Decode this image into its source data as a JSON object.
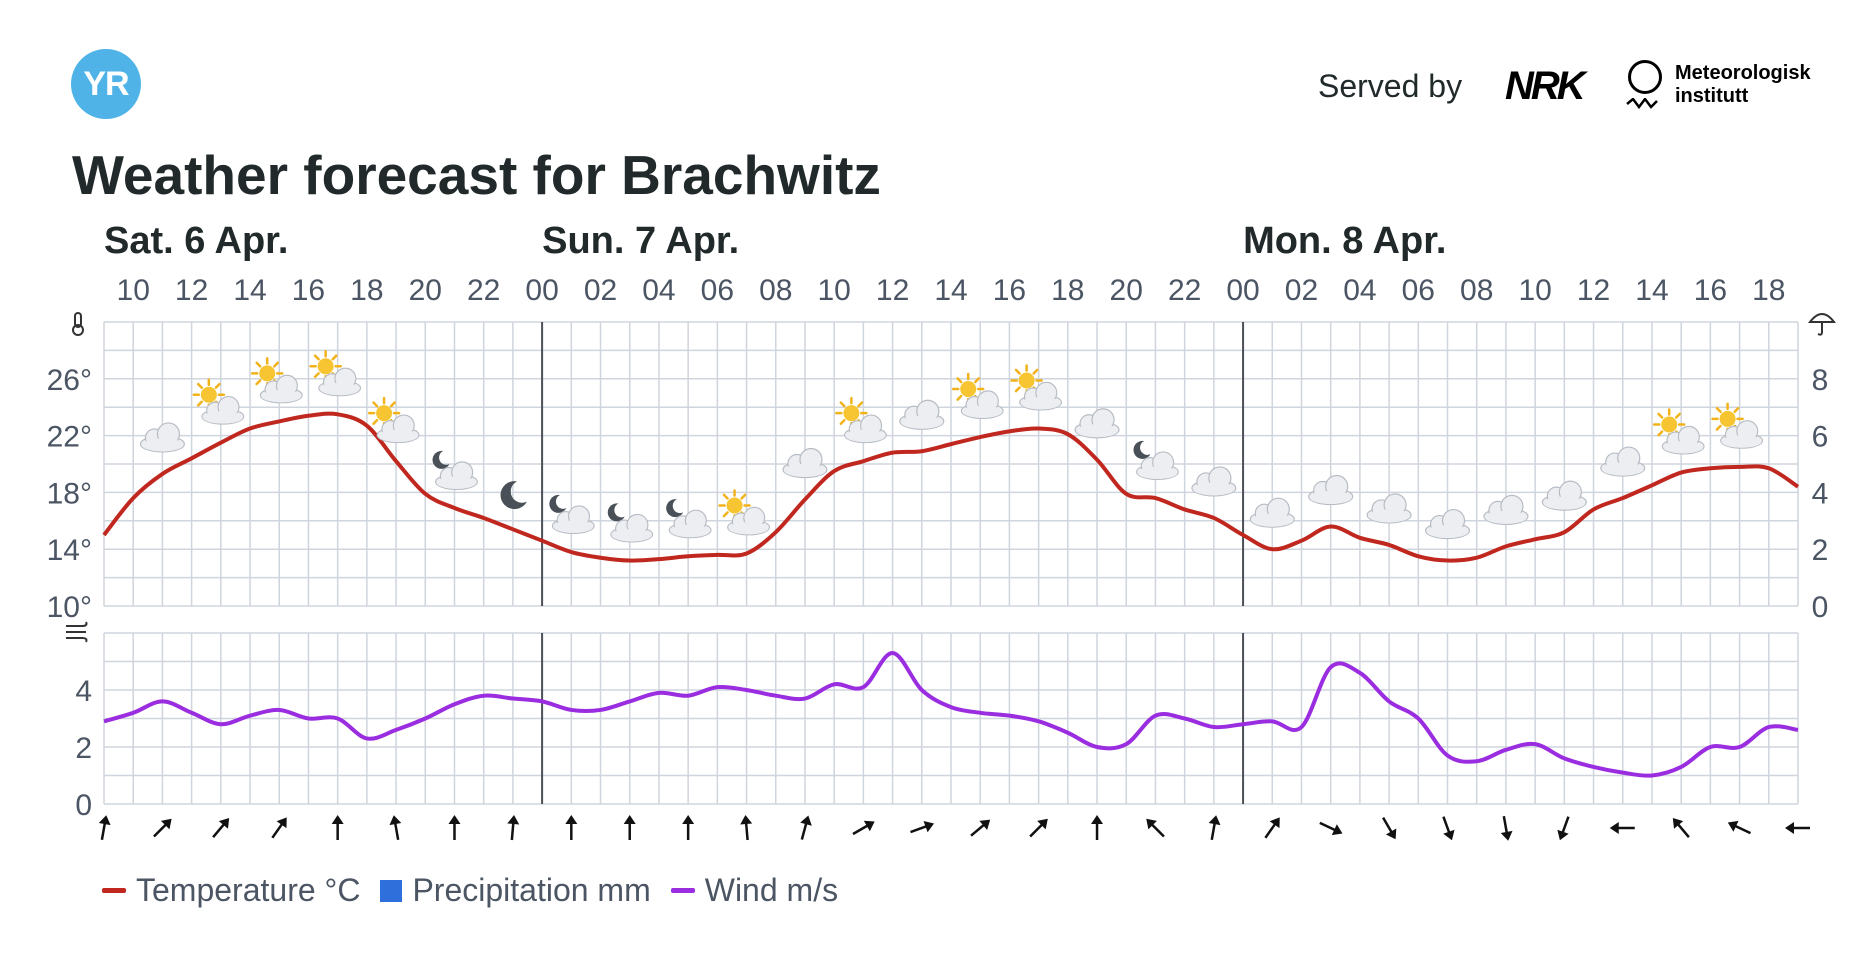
{
  "header": {
    "logo_text": "YR",
    "served_by": "Served by",
    "partner_nrk": "NRK",
    "partner_met_line1": "Meteorologisk",
    "partner_met_line2": "institutt",
    "title": "Weather forecast for Brachwitz"
  },
  "colors": {
    "temperature": "#c0281f",
    "precipitation": "#2f6fdc",
    "wind": "#9b2de0",
    "grid": "#cfd5dd",
    "logo": "#4fb3e8"
  },
  "legend": [
    {
      "label": "Temperature °C",
      "color": "#c0281f",
      "kind": "line"
    },
    {
      "label": "Precipitation mm",
      "color": "#2f6fdc",
      "kind": "box"
    },
    {
      "label": "Wind m/s",
      "color": "#9b2de0",
      "kind": "line"
    }
  ],
  "chart_data": [
    {
      "type": "line",
      "x_unit": "hours since Sat 6 Apr 09:00",
      "x_range": [
        0,
        58
      ],
      "days": [
        {
          "label": "Sat. 6 Apr.",
          "hour": 0
        },
        {
          "label": "Sun. 7 Apr.",
          "hour": 15
        },
        {
          "label": "Mon. 8 Apr.",
          "hour": 39
        }
      ],
      "hour_tick_labels": [
        "10",
        "12",
        "14",
        "16",
        "18",
        "20",
        "22",
        "00",
        "02",
        "04",
        "06",
        "08",
        "10",
        "12",
        "14",
        "16",
        "18",
        "20",
        "22",
        "00",
        "02",
        "04",
        "06",
        "08",
        "10",
        "12",
        "14",
        "16",
        "18"
      ],
      "hour_tick_positions": [
        1,
        3,
        5,
        7,
        9,
        11,
        13,
        15,
        17,
        19,
        21,
        23,
        25,
        27,
        29,
        31,
        33,
        35,
        37,
        39,
        41,
        43,
        45,
        47,
        49,
        51,
        53,
        55,
        57
      ],
      "ylim": [
        10,
        30
      ],
      "left_ticks": [
        "10°",
        "14°",
        "18°",
        "22°",
        "26°"
      ],
      "left_tick_values": [
        10,
        14,
        18,
        22,
        26
      ],
      "right_ticks": [
        "0",
        "2",
        "4",
        "6",
        "8"
      ],
      "right_tick_values": [
        0,
        2,
        4,
        6,
        8
      ],
      "right_ylim": [
        0,
        10
      ],
      "series": [
        {
          "name": "Temperature °C",
          "x": [
            0,
            1,
            2,
            3,
            4,
            5,
            6,
            7,
            8,
            9,
            10,
            11,
            12,
            13,
            14,
            15,
            16,
            17,
            18,
            19,
            20,
            21,
            22,
            23,
            24,
            25,
            26,
            27,
            28,
            29,
            30,
            31,
            32,
            33,
            34,
            35,
            36,
            37,
            38,
            39,
            40,
            41,
            42,
            43,
            44,
            45,
            46,
            47,
            48,
            49,
            50,
            51,
            52,
            53,
            54,
            55,
            56,
            57,
            58
          ],
          "values": [
            15.0,
            17.6,
            19.3,
            20.4,
            21.5,
            22.5,
            23.0,
            23.4,
            23.5,
            22.7,
            20.2,
            17.9,
            16.9,
            16.2,
            15.4,
            14.6,
            13.8,
            13.4,
            13.2,
            13.3,
            13.5,
            13.6,
            13.7,
            15.2,
            17.5,
            19.5,
            20.2,
            20.8,
            20.9,
            21.4,
            21.9,
            22.3,
            22.5,
            22.1,
            20.3,
            17.9,
            17.6,
            16.8,
            16.2,
            15.0,
            14.0,
            14.6,
            15.6,
            14.8,
            14.3,
            13.5,
            13.2,
            13.4,
            14.2,
            14.7,
            15.2,
            16.8,
            17.6,
            18.5,
            19.4,
            19.7,
            19.8,
            19.7,
            18.4
          ]
        }
      ],
      "weather_symbols": [
        {
          "hour": 2,
          "icon": "cloudy-icon"
        },
        {
          "hour": 4,
          "icon": "partly-sunny-icon"
        },
        {
          "hour": 6,
          "icon": "partly-sunny-icon"
        },
        {
          "hour": 8,
          "icon": "partly-sunny-icon"
        },
        {
          "hour": 10,
          "icon": "partly-sunny-icon"
        },
        {
          "hour": 12,
          "icon": "partly-moon-icon"
        },
        {
          "hour": 14,
          "icon": "moon-icon"
        },
        {
          "hour": 16,
          "icon": "partly-moon-icon"
        },
        {
          "hour": 18,
          "icon": "partly-moon-icon"
        },
        {
          "hour": 20,
          "icon": "partly-moon-icon"
        },
        {
          "hour": 22,
          "icon": "partly-sunny-icon"
        },
        {
          "hour": 24,
          "icon": "cloudy-icon"
        },
        {
          "hour": 26,
          "icon": "partly-sunny-icon"
        },
        {
          "hour": 28,
          "icon": "cloudy-icon"
        },
        {
          "hour": 30,
          "icon": "partly-sunny-icon"
        },
        {
          "hour": 32,
          "icon": "partly-sunny-icon"
        },
        {
          "hour": 34,
          "icon": "cloudy-icon"
        },
        {
          "hour": 36,
          "icon": "partly-moon-icon"
        },
        {
          "hour": 38,
          "icon": "cloudy-icon"
        },
        {
          "hour": 40,
          "icon": "cloudy-icon"
        },
        {
          "hour": 42,
          "icon": "cloudy-icon"
        },
        {
          "hour": 44,
          "icon": "cloudy-icon"
        },
        {
          "hour": 46,
          "icon": "cloudy-icon"
        },
        {
          "hour": 48,
          "icon": "cloudy-icon"
        },
        {
          "hour": 50,
          "icon": "cloudy-icon"
        },
        {
          "hour": 52,
          "icon": "cloudy-icon"
        },
        {
          "hour": 54,
          "icon": "partly-sunny-icon"
        },
        {
          "hour": 56,
          "icon": "partly-sunny-icon"
        }
      ],
      "grid": true
    },
    {
      "type": "line",
      "x_unit": "hours since Sat 6 Apr 09:00",
      "x_range": [
        0,
        58
      ],
      "ylim": [
        0,
        6
      ],
      "left_ticks": [
        "0",
        "2",
        "4"
      ],
      "left_tick_values": [
        0,
        2,
        4
      ],
      "series": [
        {
          "name": "Wind m/s",
          "x": [
            0,
            1,
            2,
            3,
            4,
            5,
            6,
            7,
            8,
            9,
            10,
            11,
            12,
            13,
            14,
            15,
            16,
            17,
            18,
            19,
            20,
            21,
            22,
            23,
            24,
            25,
            26,
            27,
            28,
            29,
            30,
            31,
            32,
            33,
            34,
            35,
            36,
            37,
            38,
            39,
            40,
            41,
            42,
            43,
            44,
            45,
            46,
            47,
            48,
            49,
            50,
            51,
            52,
            53,
            54,
            55,
            56,
            57,
            58
          ],
          "values": [
            2.9,
            3.2,
            3.6,
            3.2,
            2.8,
            3.1,
            3.3,
            3.0,
            3.0,
            2.3,
            2.6,
            3.0,
            3.5,
            3.8,
            3.7,
            3.6,
            3.3,
            3.3,
            3.6,
            3.9,
            3.8,
            4.1,
            4.0,
            3.8,
            3.7,
            4.2,
            4.1,
            5.3,
            4.0,
            3.4,
            3.2,
            3.1,
            2.9,
            2.5,
            2.0,
            2.1,
            3.1,
            3.0,
            2.7,
            2.8,
            2.9,
            2.7,
            4.8,
            4.6,
            3.6,
            3.0,
            1.7,
            1.5,
            1.9,
            2.1,
            1.6,
            1.3,
            1.1,
            1.0,
            1.3,
            2.0,
            2.0,
            2.7,
            2.6
          ]
        }
      ],
      "wind_direction_icons": [
        {
          "hour": 0,
          "rotation": 10
        },
        {
          "hour": 2,
          "rotation": 45
        },
        {
          "hour": 4,
          "rotation": 40
        },
        {
          "hour": 6,
          "rotation": 35
        },
        {
          "hour": 8,
          "rotation": 0
        },
        {
          "hour": 10,
          "rotation": -10
        },
        {
          "hour": 12,
          "rotation": 0
        },
        {
          "hour": 14,
          "rotation": 5
        },
        {
          "hour": 16,
          "rotation": 0
        },
        {
          "hour": 18,
          "rotation": 0
        },
        {
          "hour": 20,
          "rotation": 0
        },
        {
          "hour": 22,
          "rotation": -5
        },
        {
          "hour": 24,
          "rotation": 15
        },
        {
          "hour": 26,
          "rotation": 60
        },
        {
          "hour": 28,
          "rotation": 70
        },
        {
          "hour": 30,
          "rotation": 50
        },
        {
          "hour": 32,
          "rotation": 45
        },
        {
          "hour": 34,
          "rotation": 0
        },
        {
          "hour": 36,
          "rotation": -45
        },
        {
          "hour": 38,
          "rotation": 10
        },
        {
          "hour": 40,
          "rotation": 35
        },
        {
          "hour": 42,
          "rotation": 115
        },
        {
          "hour": 44,
          "rotation": 150
        },
        {
          "hour": 46,
          "rotation": 160
        },
        {
          "hour": 48,
          "rotation": 170
        },
        {
          "hour": 50,
          "rotation": -160
        },
        {
          "hour": 52,
          "rotation": -90
        },
        {
          "hour": 54,
          "rotation": -40
        },
        {
          "hour": 56,
          "rotation": -65
        },
        {
          "hour": 58,
          "rotation": -90
        }
      ],
      "grid": true
    }
  ]
}
